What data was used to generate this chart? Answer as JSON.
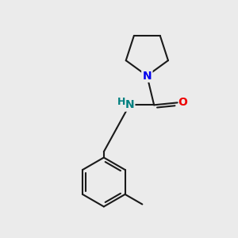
{
  "background_color": "#ebebeb",
  "bond_color": "#1a1a1a",
  "N_color": "#0000ee",
  "O_color": "#ee0000",
  "NH_color": "#008080",
  "figsize": [
    3.0,
    3.0
  ],
  "dpi": 100,
  "xlim": [
    0,
    10
  ],
  "ylim": [
    0,
    10
  ]
}
